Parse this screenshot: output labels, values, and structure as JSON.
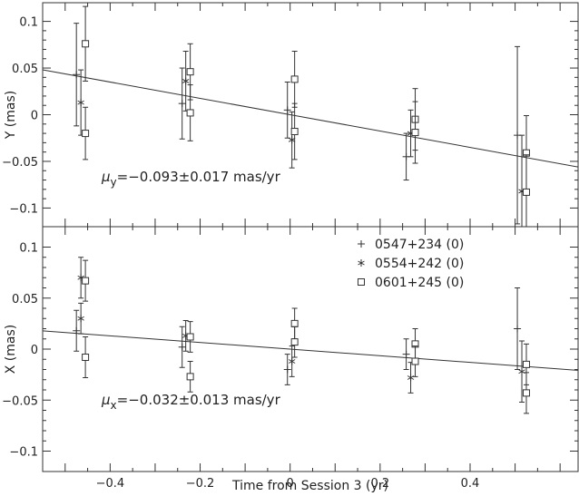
{
  "chart_data": {
    "type": "scatter",
    "xlabel": "Time from Session 3 (yr)",
    "xlim": [
      -0.55,
      0.64
    ],
    "x_ticks": [
      "−0.4",
      "−0.2",
      "0",
      "0.2",
      "0.4"
    ],
    "x_tick_values": [
      -0.4,
      -0.2,
      0,
      0.2,
      0.4
    ],
    "legend": [
      {
        "name": "0547+234 (0)",
        "marker": "plus"
      },
      {
        "name": "0554+242 (0)",
        "marker": "asterisk"
      },
      {
        "name": "0601+245 (0)",
        "marker": "square"
      }
    ],
    "panels": [
      {
        "id": "y",
        "ylabel": "Y (mas)",
        "ylim": [
          -0.12,
          0.12
        ],
        "y_ticks": [
          "−0.1",
          "−0.05",
          "0",
          "0.05",
          "0.1"
        ],
        "y_tick_values": [
          -0.1,
          -0.05,
          0,
          0.05,
          0.1
        ],
        "annotation": {
          "symbol": "μ",
          "sub": "y",
          "text": "=−0.093±0.017 mas/yr"
        },
        "fit_line": {
          "slope": -0.0875,
          "intercept": 0.0
        },
        "series": [
          {
            "name": "0547+234 (0)",
            "points": [
              {
                "x": -0.475,
                "y": 0.043,
                "err": 0.055
              },
              {
                "x": -0.24,
                "y": 0.012,
                "err": 0.038
              },
              {
                "x": -0.006,
                "y": 0.005,
                "err": 0.03
              },
              {
                "x": 0.258,
                "y": -0.045,
                "err": 0.025
              },
              {
                "x": 0.505,
                "y": -0.022,
                "err": 0.095
              }
            ]
          },
          {
            "name": "0554+242 (0)",
            "points": [
              {
                "x": -0.465,
                "y": 0.013,
                "err": 0.035
              },
              {
                "x": -0.232,
                "y": 0.036,
                "err": 0.032
              },
              {
                "x": 0.004,
                "y": -0.027,
                "err": 0.03
              },
              {
                "x": 0.268,
                "y": -0.02,
                "err": 0.025
              },
              {
                "x": 0.515,
                "y": -0.082,
                "err": 0.06
              }
            ]
          },
          {
            "name": "0601+245 (0)",
            "points": [
              {
                "x": -0.455,
                "y": 0.076,
                "err": 0.04
              },
              {
                "x": -0.455,
                "y": -0.02,
                "err": 0.028
              },
              {
                "x": -0.222,
                "y": 0.046,
                "err": 0.03
              },
              {
                "x": -0.222,
                "y": 0.002,
                "err": 0.03
              },
              {
                "x": 0.01,
                "y": 0.038,
                "err": 0.03
              },
              {
                "x": 0.01,
                "y": -0.018,
                "err": 0.03
              },
              {
                "x": 0.278,
                "y": -0.005,
                "err": 0.033
              },
              {
                "x": 0.278,
                "y": -0.019,
                "err": 0.033
              },
              {
                "x": 0.525,
                "y": -0.041,
                "err": 0.04
              },
              {
                "x": 0.525,
                "y": -0.083,
                "err": 0.04
              }
            ]
          }
        ]
      },
      {
        "id": "x",
        "ylabel": "X (mas)",
        "ylim": [
          -0.12,
          0.12
        ],
        "y_ticks": [
          "−0.1",
          "−0.05",
          "0",
          "0.05",
          "0.1"
        ],
        "y_tick_values": [
          -0.1,
          -0.05,
          0,
          0.05,
          0.1
        ],
        "annotation": {
          "symbol": "μ",
          "sub": "x",
          "text": "=−0.032±0.013 mas/yr"
        },
        "fit_line": {
          "slope": -0.0325,
          "intercept": 0.0
        },
        "series": [
          {
            "name": "0547+234 (0)",
            "points": [
              {
                "x": -0.475,
                "y": 0.018,
                "err": 0.02
              },
              {
                "x": -0.24,
                "y": 0.002,
                "err": 0.02
              },
              {
                "x": -0.006,
                "y": -0.02,
                "err": 0.015
              },
              {
                "x": 0.258,
                "y": -0.005,
                "err": 0.015
              },
              {
                "x": 0.505,
                "y": 0.02,
                "err": 0.04
              }
            ]
          },
          {
            "name": "0554+242 (0)",
            "points": [
              {
                "x": -0.465,
                "y": 0.07,
                "err": 0.02
              },
              {
                "x": -0.465,
                "y": 0.03,
                "err": 0.015
              },
              {
                "x": -0.232,
                "y": 0.013,
                "err": 0.015
              },
              {
                "x": 0.004,
                "y": -0.012,
                "err": 0.015
              },
              {
                "x": 0.268,
                "y": -0.028,
                "err": 0.015
              },
              {
                "x": 0.515,
                "y": -0.022,
                "err": 0.03
              }
            ]
          },
          {
            "name": "0601+245 (0)",
            "points": [
              {
                "x": -0.455,
                "y": 0.067,
                "err": 0.02
              },
              {
                "x": -0.455,
                "y": -0.008,
                "err": 0.02
              },
              {
                "x": -0.222,
                "y": 0.012,
                "err": 0.015
              },
              {
                "x": -0.222,
                "y": -0.027,
                "err": 0.015
              },
              {
                "x": 0.01,
                "y": 0.025,
                "err": 0.015
              },
              {
                "x": 0.01,
                "y": 0.007,
                "err": 0.015
              },
              {
                "x": 0.278,
                "y": 0.005,
                "err": 0.015
              },
              {
                "x": 0.278,
                "y": -0.012,
                "err": 0.015
              },
              {
                "x": 0.525,
                "y": -0.015,
                "err": 0.02
              },
              {
                "x": 0.525,
                "y": -0.043,
                "err": 0.02
              }
            ]
          }
        ]
      }
    ],
    "grid": false,
    "color": "#333333"
  }
}
